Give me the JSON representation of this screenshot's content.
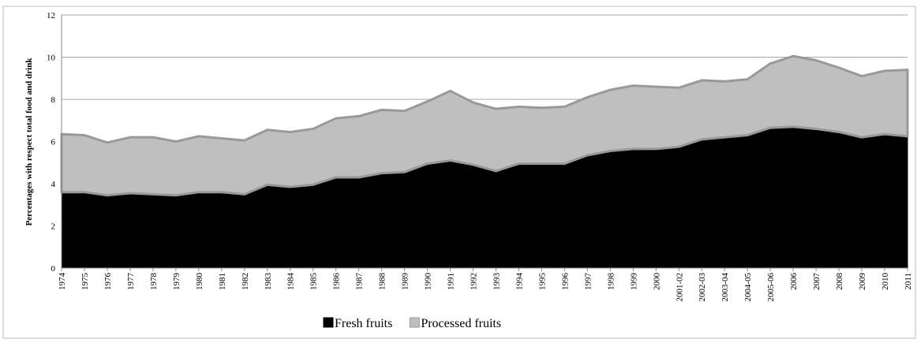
{
  "chart_data": {
    "type": "stacked-area",
    "y_label": "Percentages with respect total food and drink",
    "categories": [
      "1974",
      "1975",
      "1976",
      "1977",
      "1978",
      "1979",
      "1980",
      "1981",
      "1982",
      "1983",
      "1984",
      "1985",
      "1986",
      "1987",
      "1988",
      "1989",
      "1990",
      "1991",
      "1992",
      "1993",
      "1994",
      "1995",
      "1996",
      "1997",
      "1998",
      "1999",
      "2000",
      "2001-02",
      "2002-03",
      "2003-04",
      "2004-05",
      "2005-06",
      "2006",
      "2007",
      "2008",
      "2009",
      "2010",
      "2011"
    ],
    "series": [
      {
        "name": "Fresh fruits",
        "color": "#000000",
        "values": [
          3.6,
          3.6,
          3.45,
          3.55,
          3.5,
          3.45,
          3.6,
          3.6,
          3.5,
          3.95,
          3.85,
          3.95,
          4.3,
          4.3,
          4.5,
          4.55,
          4.95,
          5.1,
          4.9,
          4.6,
          4.95,
          4.95,
          4.95,
          5.35,
          5.55,
          5.65,
          5.65,
          5.75,
          6.1,
          6.2,
          6.3,
          6.65,
          6.7,
          6.6,
          6.45,
          6.2,
          6.35,
          6.25
        ]
      },
      {
        "name": "Processed fruits",
        "color": "#bfbfbf",
        "values": [
          2.75,
          2.7,
          2.5,
          2.65,
          2.7,
          2.55,
          2.65,
          2.55,
          2.55,
          2.6,
          2.6,
          2.65,
          2.8,
          2.9,
          3.0,
          2.9,
          2.95,
          3.3,
          2.95,
          2.95,
          2.7,
          2.65,
          2.7,
          2.75,
          2.9,
          3.0,
          2.95,
          2.8,
          2.8,
          2.65,
          2.65,
          3.05,
          3.35,
          3.25,
          3.05,
          2.9,
          3.0,
          3.15
        ]
      }
    ],
    "ylim": [
      0,
      12
    ],
    "yticks": [
      0,
      2,
      4,
      6,
      8,
      10,
      12
    ],
    "grid": true,
    "legend": "bottom"
  }
}
